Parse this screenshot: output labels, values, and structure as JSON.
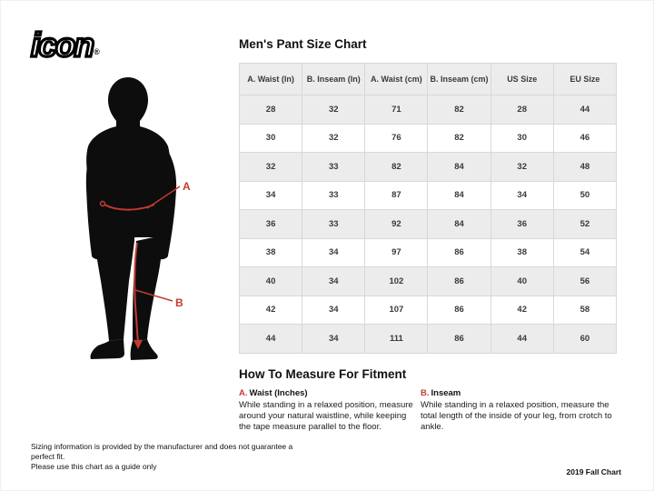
{
  "brand": {
    "logo_text": "icon",
    "registered_mark": "®"
  },
  "accent_color": "#c23b33",
  "chart_data": {
    "type": "table",
    "title": "Men's Pant Size Chart",
    "headers": [
      "A. Waist (In)",
      "B. Inseam (In)",
      "A. Waist (cm)",
      "B. Inseam (cm)",
      "US Size",
      "EU Size"
    ],
    "rows": [
      [
        "28",
        "32",
        "71",
        "82",
        "28",
        "44"
      ],
      [
        "30",
        "32",
        "76",
        "82",
        "30",
        "46"
      ],
      [
        "32",
        "33",
        "82",
        "84",
        "32",
        "48"
      ],
      [
        "34",
        "33",
        "87",
        "84",
        "34",
        "50"
      ],
      [
        "36",
        "33",
        "92",
        "84",
        "36",
        "52"
      ],
      [
        "38",
        "34",
        "97",
        "86",
        "38",
        "54"
      ],
      [
        "40",
        "34",
        "102",
        "86",
        "40",
        "56"
      ],
      [
        "42",
        "34",
        "107",
        "86",
        "42",
        "58"
      ],
      [
        "44",
        "34",
        "111",
        "86",
        "44",
        "60"
      ]
    ]
  },
  "figure": {
    "label_a": "A",
    "label_b": "B"
  },
  "how_to": {
    "heading": "How To Measure For Fitment",
    "items": [
      {
        "prefix": "A.",
        "title": "Waist (Inches)",
        "description": "While standing in a relaxed position, measure around your natural waistline, while keeping the tape measure parallel to the floor."
      },
      {
        "prefix": "B.",
        "title": "Inseam",
        "description": "While standing in a relaxed position, measure the total length of the inside of your leg, from crotch to ankle."
      }
    ]
  },
  "footer": {
    "disclaimer_line1": "Sizing information is provided by the manufacturer and does not guarantee a perfect fit.",
    "disclaimer_line2": "Please use this chart as a guide only",
    "chart_version": "2019 Fall Chart"
  }
}
